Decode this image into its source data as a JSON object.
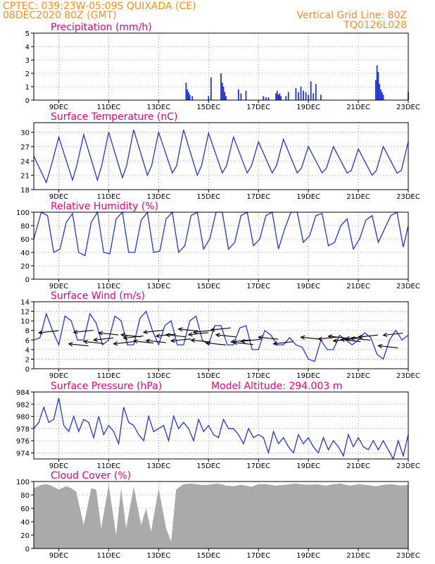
{
  "header": {
    "source_coords": "CPTEC:   039:23W-05:09S   QUIXADA (CE)",
    "run_time": "08DEC2020 80Z (GMT)",
    "grid_note": "Vertical Grid Line: 80Z",
    "model_id": "TQ0126L028"
  },
  "colors": {
    "header": "#ff8c1a",
    "titles": "#e6007e",
    "series": "#2233dd",
    "cloud_fill": "#aaaaaa",
    "arrows": "#000000"
  },
  "x_tick_labels": [
    "9DEC",
    "11DEC",
    "13DEC",
    "15DEC",
    "17DEC",
    "19DEC",
    "21DEC",
    "23DEC"
  ],
  "chart_data": [
    {
      "id": "precip",
      "type": "bar",
      "title": "Precipitation (mm/h)",
      "xlabel": "",
      "ylabel": "",
      "x_unit": "days since 08DEC2020 00Z",
      "ylim": [
        0,
        5
      ],
      "yticks": [
        0,
        1,
        2,
        3,
        4,
        5
      ],
      "grid": true,
      "x": [
        6.1,
        6.15,
        6.2,
        6.25,
        6.35,
        7.0,
        7.1,
        7.5,
        7.55,
        7.6,
        7.65,
        7.7,
        8.2,
        8.3,
        8.5,
        9.2,
        9.3,
        9.4,
        9.7,
        9.75,
        9.8,
        9.85,
        9.9,
        10.1,
        10.2,
        10.5,
        10.6,
        10.7,
        10.8,
        10.9,
        11.0,
        11.1,
        11.2,
        11.3,
        11.5,
        13.7,
        13.75,
        13.8,
        13.85,
        13.9,
        13.95,
        14.0,
        15.0
      ],
      "values": [
        1.3,
        0.8,
        0.6,
        0.4,
        0.3,
        0.3,
        1.7,
        2.0,
        1.3,
        1.0,
        0.6,
        0.3,
        0.8,
        0.5,
        0.7,
        0.3,
        0.2,
        0.2,
        0.5,
        0.7,
        0.4,
        0.5,
        0.3,
        0.3,
        0.6,
        0.9,
        0.6,
        1.0,
        0.7,
        0.6,
        0.4,
        1.4,
        0.5,
        1.2,
        0.4,
        1.5,
        2.6,
        2.1,
        1.2,
        0.8,
        0.6,
        0.4,
        0.6
      ]
    },
    {
      "id": "temperature",
      "type": "line",
      "title": "Surface Temperature (nC)",
      "xlabel": "",
      "ylabel": "",
      "x_unit": "days since 08DEC2020 00Z",
      "ylim": [
        18,
        32
      ],
      "yticks": [
        18,
        21,
        24,
        27,
        30
      ],
      "grid": true,
      "x": [
        0.0,
        0.5,
        0.7,
        1.0,
        1.55,
        1.72,
        2.0,
        2.55,
        2.72,
        3.0,
        3.55,
        3.72,
        4.0,
        4.55,
        4.72,
        5.0,
        5.55,
        5.72,
        6.0,
        6.55,
        6.72,
        7.0,
        7.55,
        7.72,
        8.0,
        8.55,
        8.72,
        9.0,
        9.55,
        9.72,
        10.0,
        10.55,
        10.72,
        11.0,
        11.55,
        11.72,
        12.0,
        12.55,
        12.72,
        13.0,
        13.55,
        13.72,
        14.0,
        14.55,
        14.72,
        15.0
      ],
      "values": [
        25.0,
        19.5,
        23.0,
        29.0,
        20.0,
        23.0,
        29.5,
        20.0,
        23.0,
        30.0,
        20.5,
        23.0,
        30.5,
        21.0,
        23.0,
        30.0,
        21.5,
        23.0,
        30.5,
        21.0,
        23.0,
        29.8,
        21.5,
        23.0,
        29.0,
        21.5,
        23.0,
        28.0,
        21.5,
        23.0,
        28.5,
        21.5,
        22.5,
        27.0,
        21.5,
        22.5,
        27.0,
        21.5,
        22.0,
        26.5,
        21.0,
        22.0,
        27.0,
        21.5,
        22.0,
        28.0
      ]
    },
    {
      "id": "humidity",
      "type": "line",
      "title": "Relative Humidity (%)",
      "xlabel": "",
      "ylabel": "",
      "x_unit": "days since 08DEC2020 00Z",
      "ylim": [
        0,
        100
      ],
      "yticks": [
        0,
        20,
        40,
        60,
        80,
        100
      ],
      "grid": true,
      "x": [
        0.0,
        0.3,
        0.55,
        0.8,
        1.05,
        1.3,
        1.55,
        1.8,
        2.05,
        2.3,
        2.55,
        2.8,
        3.05,
        3.3,
        3.55,
        3.8,
        4.05,
        4.3,
        4.55,
        4.8,
        5.05,
        5.3,
        5.55,
        5.8,
        6.05,
        6.3,
        6.55,
        6.8,
        7.05,
        7.3,
        7.55,
        7.8,
        8.05,
        8.3,
        8.55,
        8.8,
        9.05,
        9.3,
        9.55,
        9.8,
        10.05,
        10.3,
        10.55,
        10.8,
        11.05,
        11.3,
        11.55,
        11.8,
        12.05,
        12.3,
        12.55,
        12.8,
        13.05,
        13.3,
        13.55,
        13.8,
        14.05,
        14.3,
        14.55,
        14.8,
        15.0
      ],
      "values": [
        60,
        100,
        95,
        40,
        45,
        85,
        98,
        40,
        35,
        85,
        100,
        40,
        38,
        90,
        100,
        40,
        40,
        88,
        100,
        40,
        42,
        90,
        100,
        40,
        50,
        95,
        100,
        45,
        60,
        100,
        100,
        45,
        55,
        95,
        100,
        50,
        60,
        95,
        100,
        45,
        75,
        100,
        100,
        55,
        65,
        95,
        98,
        50,
        55,
        80,
        90,
        45,
        60,
        88,
        95,
        55,
        75,
        95,
        100,
        48,
        80
      ]
    },
    {
      "id": "wind",
      "type": "line",
      "title": "Surface Wind (m/s)",
      "xlabel": "",
      "ylabel": "",
      "x_unit": "days since 08DEC2020 00Z",
      "ylim": [
        0,
        14
      ],
      "yticks": [
        0,
        2,
        4,
        6,
        8,
        10,
        12,
        14
      ],
      "grid": true,
      "x": [
        0.0,
        0.25,
        0.5,
        0.75,
        1.0,
        1.25,
        1.5,
        1.75,
        2.0,
        2.25,
        2.5,
        2.75,
        3.0,
        3.25,
        3.5,
        3.75,
        4.0,
        4.25,
        4.5,
        4.75,
        5.0,
        5.25,
        5.5,
        5.75,
        6.0,
        6.25,
        6.5,
        6.75,
        7.0,
        7.25,
        7.5,
        7.75,
        8.0,
        8.25,
        8.5,
        8.75,
        9.0,
        9.25,
        9.5,
        9.75,
        10.0,
        10.25,
        10.5,
        10.75,
        11.0,
        11.25,
        11.5,
        11.75,
        12.0,
        12.25,
        12.5,
        12.75,
        13.0,
        13.25,
        13.5,
        13.75,
        14.0,
        14.25,
        14.5,
        14.75,
        15.0
      ],
      "values": [
        6.0,
        6.5,
        11.5,
        8.0,
        5.0,
        11.0,
        10.0,
        6.0,
        6.0,
        11.5,
        9.5,
        5.0,
        6.0,
        11.0,
        10.0,
        5.0,
        5.0,
        10.5,
        12.0,
        8.0,
        5.0,
        9.0,
        10.0,
        5.0,
        5.0,
        10.0,
        11.0,
        6.0,
        5.0,
        9.0,
        9.0,
        5.0,
        5.0,
        8.5,
        9.0,
        4.0,
        4.0,
        8.0,
        7.0,
        5.0,
        5.0,
        6.5,
        5.0,
        4.5,
        2.0,
        1.5,
        6.0,
        4.0,
        4.0,
        7.0,
        6.0,
        5.0,
        6.0,
        7.5,
        6.5,
        3.0,
        2.0,
        6.0,
        8.0,
        6.0,
        7.0
      ],
      "arrows": {
        "x": [
          0.2,
          1.4,
          1.6,
          2.0,
          2.4,
          2.6,
          3.2,
          3.5,
          3.6,
          4.0,
          4.4,
          4.5,
          4.9,
          5.3,
          5.5,
          5.8,
          6.2,
          6.3,
          6.4,
          6.9,
          7.1,
          7.3,
          7.9,
          8.0,
          8.3,
          9.0,
          9.6,
          10.7,
          11.4,
          11.8,
          12.0,
          12.3,
          12.5,
          12.7,
          13.0,
          13.8,
          14.0
        ],
        "y": [
          7.5,
          5.2,
          7.6,
          5.7,
          6.0,
          7.5,
          5.2,
          7.1,
          6.4,
          5.8,
          7.6,
          5.9,
          6.8,
          7.1,
          5.8,
          8.3,
          7.1,
          6.0,
          7.6,
          5.4,
          8.1,
          7.1,
          5.6,
          5.5,
          5.7,
          6.6,
          5.2,
          6.6,
          6.2,
          6.8,
          5.8,
          6.1,
          6.3,
          6.4,
          6.6,
          4.8,
          7.0
        ]
      }
    },
    {
      "id": "pressure",
      "type": "line",
      "title": "Surface Pressure (hPa)",
      "annotation": "Model Altitude: 294.003 m",
      "xlabel": "",
      "ylabel": "",
      "x_unit": "days since 08DEC2020 00Z",
      "ylim": [
        973,
        984
      ],
      "yticks": [
        974,
        976,
        978,
        980,
        982,
        984
      ],
      "grid": true,
      "x": [
        0.0,
        0.2,
        0.4,
        0.6,
        0.8,
        1.0,
        1.2,
        1.4,
        1.6,
        1.8,
        2.0,
        2.2,
        2.4,
        2.6,
        2.8,
        3.0,
        3.2,
        3.4,
        3.6,
        3.8,
        4.0,
        4.2,
        4.4,
        4.6,
        4.8,
        5.0,
        5.2,
        5.4,
        5.6,
        5.8,
        6.0,
        6.2,
        6.4,
        6.6,
        6.8,
        7.0,
        7.2,
        7.4,
        7.6,
        7.8,
        8.0,
        8.2,
        8.4,
        8.6,
        8.8,
        9.0,
        9.2,
        9.4,
        9.6,
        9.8,
        10.0,
        10.2,
        10.4,
        10.6,
        10.8,
        11.0,
        11.2,
        11.4,
        11.6,
        11.8,
        12.0,
        12.2,
        12.4,
        12.6,
        12.8,
        13.0,
        13.2,
        13.4,
        13.6,
        13.8,
        14.0,
        14.2,
        14.4,
        14.6,
        14.8,
        15.0
      ],
      "values": [
        978.0,
        979.0,
        981.5,
        979.0,
        979.5,
        983.0,
        978.5,
        977.5,
        980.0,
        977.5,
        979.5,
        979.0,
        976.5,
        980.0,
        977.0,
        978.5,
        977.5,
        975.5,
        981.5,
        979.0,
        978.5,
        977.0,
        976.0,
        980.0,
        977.5,
        978.0,
        978.5,
        976.0,
        980.0,
        978.0,
        979.0,
        978.0,
        976.0,
        979.5,
        977.5,
        978.5,
        977.0,
        976.5,
        979.5,
        978.0,
        978.0,
        977.0,
        975.5,
        978.0,
        976.5,
        977.0,
        976.5,
        974.0,
        977.5,
        975.5,
        976.5,
        975.0,
        974.0,
        977.0,
        975.5,
        976.5,
        975.0,
        974.0,
        976.5,
        974.5,
        976.0,
        975.0,
        973.5,
        977.0,
        975.0,
        976.5,
        975.0,
        974.5,
        976.0,
        974.5,
        976.0,
        974.5,
        973.0,
        976.0,
        973.5,
        977.0
      ]
    },
    {
      "id": "cloud",
      "type": "area",
      "title": "Cloud Cover (%)",
      "xlabel": "",
      "ylabel": "",
      "x_unit": "days since 08DEC2020 00Z",
      "ylim": [
        0,
        100
      ],
      "yticks": [
        0,
        20,
        40,
        60,
        80,
        100
      ],
      "grid": true,
      "x": [
        0.0,
        0.3,
        0.5,
        0.7,
        1.0,
        1.3,
        1.5,
        1.7,
        2.0,
        2.3,
        2.5,
        2.7,
        3.0,
        3.3,
        3.5,
        3.7,
        4.0,
        4.3,
        4.5,
        4.7,
        5.0,
        5.3,
        5.5,
        5.7,
        6.0,
        6.3,
        6.5,
        6.7,
        7.0,
        7.3,
        7.5,
        7.7,
        8.0,
        8.3,
        8.5,
        8.7,
        9.0,
        9.3,
        9.5,
        9.7,
        10.0,
        10.3,
        10.5,
        10.7,
        11.0,
        11.3,
        11.5,
        11.7,
        12.0,
        12.3,
        12.5,
        12.7,
        13.0,
        13.3,
        13.5,
        13.7,
        14.0,
        14.3,
        14.5,
        14.7,
        15.0
      ],
      "values": [
        90,
        95,
        96,
        94,
        88,
        93,
        90,
        85,
        35,
        90,
        88,
        30,
        95,
        20,
        90,
        30,
        92,
        35,
        60,
        25,
        90,
        30,
        10,
        88,
        96,
        97,
        96,
        95,
        95,
        97,
        96,
        94,
        93,
        95,
        94,
        92,
        96,
        96,
        95,
        94,
        95,
        96,
        97,
        96,
        95,
        96,
        95,
        94,
        96,
        97,
        95,
        94,
        96,
        95,
        94,
        93,
        95,
        96,
        95,
        94,
        95
      ]
    }
  ]
}
